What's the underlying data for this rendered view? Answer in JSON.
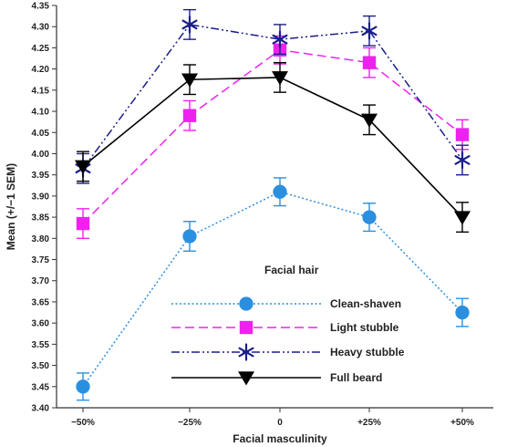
{
  "chart_data": {
    "type": "line",
    "xlabel": "Facial masculinity",
    "ylabel": "Mean (+/−1 SEM)",
    "categories": [
      "−50%",
      "−25%",
      "0",
      "+25%",
      "+50%"
    ],
    "ylim": [
      3.4,
      4.35
    ],
    "yticks": [
      "3.40",
      "3.45",
      "3.50",
      "3.55",
      "3.60",
      "3.65",
      "3.70",
      "3.75",
      "3.80",
      "3.85",
      "3.90",
      "3.95",
      "4.00",
      "4.05",
      "4.10",
      "4.15",
      "4.20",
      "4.25",
      "4.30",
      "4.35"
    ],
    "legend_title": "Facial hair",
    "legend_position": "lower-center",
    "series": [
      {
        "name": "Clean-shaven",
        "color": "#2b8fe0",
        "marker": "circle",
        "linestyle": "dotted",
        "values": [
          3.45,
          3.805,
          3.91,
          3.85,
          3.625
        ],
        "sem": [
          0.032,
          0.035,
          0.033,
          0.033,
          0.033
        ]
      },
      {
        "name": "Light stubble",
        "color": "#ee22ee",
        "marker": "square",
        "linestyle": "dashed",
        "values": [
          3.835,
          4.09,
          4.245,
          4.215,
          4.045
        ],
        "sem": [
          0.035,
          0.035,
          0.033,
          0.035,
          0.035
        ]
      },
      {
        "name": "Heavy stubble",
        "color": "#1a1f8a",
        "marker": "asterisk",
        "linestyle": "dash-dot-dot",
        "values": [
          3.965,
          4.305,
          4.27,
          4.29,
          3.985
        ],
        "sem": [
          0.035,
          0.035,
          0.035,
          0.035,
          0.035
        ]
      },
      {
        "name": "Full beard",
        "color": "#000000",
        "marker": "triangle-down",
        "linestyle": "solid",
        "values": [
          3.97,
          4.175,
          4.18,
          4.08,
          3.85
        ],
        "sem": [
          0.035,
          0.035,
          0.035,
          0.035,
          0.035
        ]
      }
    ]
  }
}
